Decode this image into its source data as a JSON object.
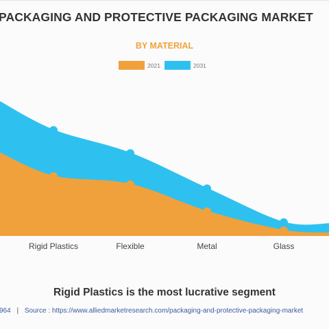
{
  "header": {
    "title": "PACKAGING AND PROTECTIVE PACKAGING MARKET",
    "subtitle": "BY MATERIAL"
  },
  "legend": [
    {
      "label": "2021",
      "color": "#f0a13c"
    },
    {
      "label": "2031",
      "color": "#2ec1f0"
    }
  ],
  "chart_data": {
    "type": "area",
    "title": "PACKAGING AND PROTECTIVE PACKAGING MARKET",
    "subtitle": "BY MATERIAL",
    "categories": [
      "",
      "Rigid Plastics",
      "Flexible",
      "Metal",
      "Glass",
      ""
    ],
    "series": [
      {
        "name": "2021",
        "color": "#f0a13c",
        "values": [
          62,
          44,
          38,
          18,
          4,
          2
        ]
      },
      {
        "name": "2031",
        "color": "#2ec1f0",
        "values": [
          100,
          78,
          61,
          35,
          10,
          9
        ]
      }
    ],
    "ylim": [
      0,
      110
    ],
    "grid": false,
    "legend_position": "top-center"
  },
  "footer": {
    "id_fragment": "964",
    "separator": "|",
    "source_text": "Source : https://www.alliedmarketresearch.com/packaging-and-protective-packaging-market"
  },
  "headline": "Rigid Plastics is the most lucrative segment"
}
